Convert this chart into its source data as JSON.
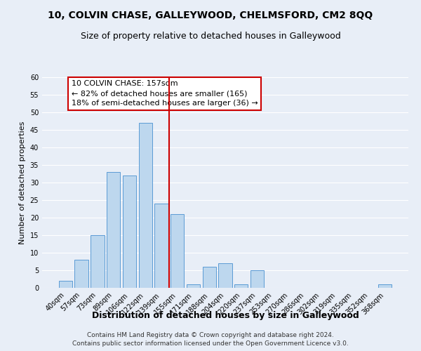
{
  "title": "10, COLVIN CHASE, GALLEYWOOD, CHELMSFORD, CM2 8QQ",
  "subtitle": "Size of property relative to detached houses in Galleywood",
  "xlabel": "Distribution of detached houses by size in Galleywood",
  "ylabel": "Number of detached properties",
  "bar_labels": [
    "40sqm",
    "57sqm",
    "73sqm",
    "89sqm",
    "106sqm",
    "122sqm",
    "139sqm",
    "155sqm",
    "171sqm",
    "188sqm",
    "204sqm",
    "220sqm",
    "237sqm",
    "253sqm",
    "270sqm",
    "286sqm",
    "302sqm",
    "319sqm",
    "335sqm",
    "352sqm",
    "368sqm"
  ],
  "bar_values": [
    2,
    8,
    15,
    33,
    32,
    47,
    24,
    21,
    1,
    6,
    7,
    1,
    5,
    0,
    0,
    0,
    0,
    0,
    0,
    0,
    1
  ],
  "bar_color": "#bdd7ee",
  "bar_edge_color": "#5b9bd5",
  "vline_x_index": 7,
  "vline_color": "#cc0000",
  "ylim": [
    0,
    60
  ],
  "yticks": [
    0,
    5,
    10,
    15,
    20,
    25,
    30,
    35,
    40,
    45,
    50,
    55,
    60
  ],
  "annotation_title": "10 COLVIN CHASE: 157sqm",
  "annotation_line1": "← 82% of detached houses are smaller (165)",
  "annotation_line2": "18% of semi-detached houses are larger (36) →",
  "annotation_box_color": "#ffffff",
  "annotation_border_color": "#cc0000",
  "footer_line1": "Contains HM Land Registry data © Crown copyright and database right 2024.",
  "footer_line2": "Contains public sector information licensed under the Open Government Licence v3.0.",
  "bg_color": "#e8eef7",
  "plot_bg_color": "#e8eef7",
  "title_fontsize": 10,
  "subtitle_fontsize": 9,
  "xlabel_fontsize": 9,
  "ylabel_fontsize": 8,
  "tick_fontsize": 7,
  "annotation_fontsize": 8,
  "footer_fontsize": 6.5
}
